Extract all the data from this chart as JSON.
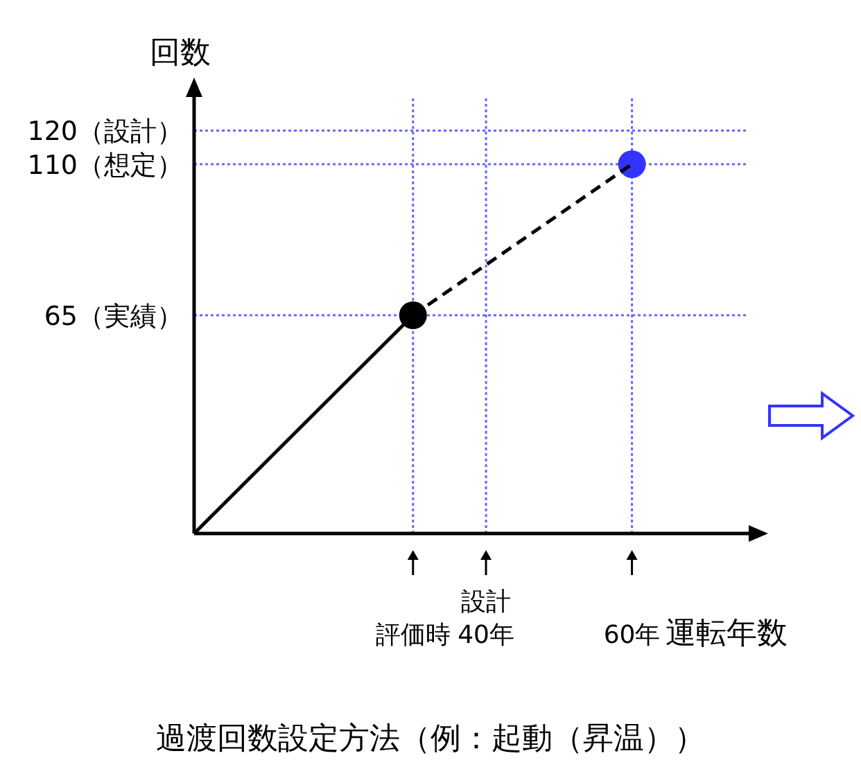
{
  "chart_data": {
    "type": "line",
    "title": "過渡回数設定方法（例：起動（昇温））",
    "xlabel": "運転年数",
    "ylabel": "回数",
    "xlim": [
      0,
      76
    ],
    "ylim": [
      0,
      130
    ],
    "xticks": [
      {
        "value": 30,
        "label": "評価時"
      },
      {
        "value": 40,
        "label": "40年"
      },
      {
        "value": 60,
        "label": "60年"
      }
    ],
    "annotations": [
      "設計"
    ],
    "yticks": [
      {
        "value": 65,
        "label": "65（実績）"
      },
      {
        "value": 110,
        "label": "110（想定）"
      },
      {
        "value": 120,
        "label": "120（設計）"
      }
    ],
    "series": [
      {
        "type": "line",
        "color": "#000000",
        "line_style": "solid",
        "marker": "none",
        "x": [
          0,
          30
        ],
        "values": [
          0,
          65
        ]
      },
      {
        "type": "line",
        "color": "#000000",
        "line_style": "dashed",
        "marker": "none",
        "x": [
          30,
          60
        ],
        "values": [
          65,
          110
        ]
      },
      {
        "type": "scatter",
        "color": "#000000",
        "marker": "circle",
        "x": [
          30
        ],
        "values": [
          65
        ]
      },
      {
        "type": "scatter",
        "color": "#3333ff",
        "marker": "circle",
        "x": [
          60
        ],
        "values": [
          110
        ]
      }
    ],
    "ref_lines": [
      {
        "axis": "y",
        "value": 120,
        "color": "#6666ff",
        "line_style": "dotted"
      },
      {
        "axis": "y",
        "value": 110,
        "color": "#6666ff",
        "line_style": "dotted"
      },
      {
        "axis": "y",
        "value": 65,
        "color": "#6666ff",
        "line_style": "dotted"
      },
      {
        "axis": "x",
        "value": 30,
        "color": "#6666ff",
        "line_style": "dotted"
      },
      {
        "axis": "x",
        "value": 40,
        "color": "#6666ff",
        "line_style": "dotted"
      },
      {
        "axis": "x",
        "value": 60,
        "color": "#6666ff",
        "line_style": "dotted"
      }
    ]
  }
}
